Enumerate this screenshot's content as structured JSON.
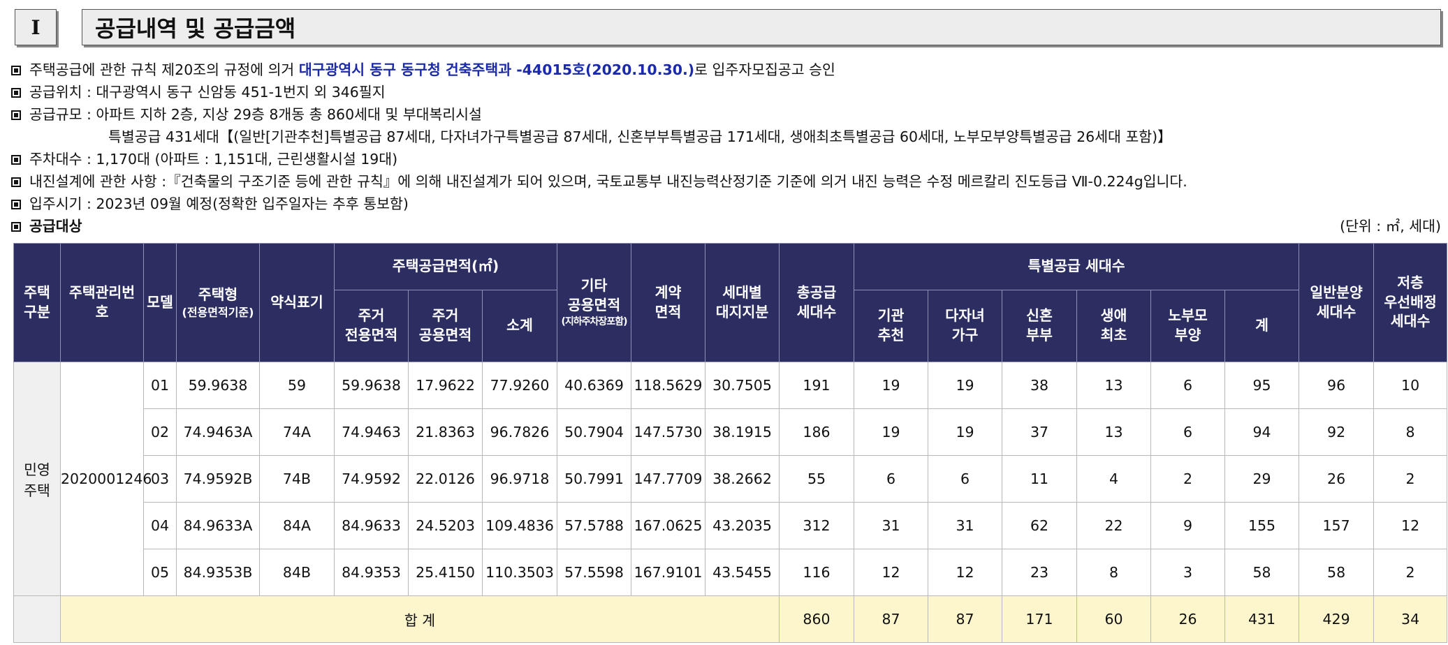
{
  "section": {
    "number": "I",
    "title": "공급내역 및 공급금액"
  },
  "notes": {
    "approval_prefix": "주택공급에 관한 규칙 제20조의 규정에 의거 ",
    "approval_highlight": "대구광역시 동구 동구청 건축주택과 -44015호(2020.10.30.)",
    "approval_suffix": "로 입주자모집공고 승인",
    "location": "공급위치 : 대구광역시 동구 신암동 451-1번지 외 346필지",
    "scale": "공급규모 : 아파트 지하 2층, 지상 29층 8개동 총 860세대 및 부대복리시설",
    "special": "특별공급 431세대【(일반[기관추천]특별공급 87세대, 다자녀가구특별공급 87세대, 신혼부부특별공급 171세대, 생애최초특별공급 60세대, 노부모부양특별공급 26세대 포함)】",
    "parking": "주차대수 : 1,170대 (아파트 : 1,151대, 근린생활시설 19대)",
    "seismic": "내진설계에 관한 사항 :『건축물의 구조기준 등에 관한 규칙』에 의해 내진설계가 되어 있으며, 국토교통부 내진능력산정기준 기준에 의거 내진 능력은 수정 메르칼리 진도등급 Ⅶ-0.224g입니다.",
    "move_in": "입주시기 : 2023년 09월 예정(정확한 입주일자는 추후 통보함)",
    "target_label": "공급대상",
    "unit_label": "(단위 : ㎡, 세대)"
  },
  "table": {
    "headers": {
      "house_type_group": "주택\n구분",
      "mgmt_no": "주택관리번\n호",
      "model": "모델",
      "house_type": "주택형",
      "house_type_sub": "(전용면적기준)",
      "short_label": "약식표기",
      "supply_area": "주택공급면적(㎡)",
      "exclusive": "주거\n전용면적",
      "common": "주거\n공용면적",
      "subtotal": "소계",
      "other_common": "기타\n공용면적",
      "other_common_sub": "(지하주차장포함)",
      "contract_area": "계약\n면적",
      "land_share": "세대별\n대지지분",
      "total_supply": "총공급\n세대수",
      "special_group": "특별공급 세대수",
      "institution": "기관\n추천",
      "multi_child": "다자녀\n가구",
      "newlywed": "신혼\n부부",
      "first_time": "생애\n최초",
      "elderly": "노부모\n부양",
      "special_total": "계",
      "general": "일반분양\n세대수",
      "low_floor": "저층\n우선배정\n세대수"
    },
    "type_group": "민영\n주택",
    "mgmt_no": "2020001246",
    "rows": [
      {
        "model": "01",
        "type": "59.9638",
        "short": "59",
        "exclusive": "59.9638",
        "common": "17.9622",
        "subtotal": "77.9260",
        "other": "40.6369",
        "contract": "118.5629",
        "land": "30.7505",
        "total": "191",
        "institution": "19",
        "multi_child": "19",
        "newlywed": "38",
        "first_time": "13",
        "elderly": "6",
        "special_total": "95",
        "general": "96",
        "low_floor": "10"
      },
      {
        "model": "02",
        "type": "74.9463A",
        "short": "74A",
        "exclusive": "74.9463",
        "common": "21.8363",
        "subtotal": "96.7826",
        "other": "50.7904",
        "contract": "147.5730",
        "land": "38.1915",
        "total": "186",
        "institution": "19",
        "multi_child": "19",
        "newlywed": "37",
        "first_time": "13",
        "elderly": "6",
        "special_total": "94",
        "general": "92",
        "low_floor": "8"
      },
      {
        "model": "03",
        "type": "74.9592B",
        "short": "74B",
        "exclusive": "74.9592",
        "common": "22.0126",
        "subtotal": "96.9718",
        "other": "50.7991",
        "contract": "147.7709",
        "land": "38.2662",
        "total": "55",
        "institution": "6",
        "multi_child": "6",
        "newlywed": "11",
        "first_time": "4",
        "elderly": "2",
        "special_total": "29",
        "general": "26",
        "low_floor": "2"
      },
      {
        "model": "04",
        "type": "84.9633A",
        "short": "84A",
        "exclusive": "84.9633",
        "common": "24.5203",
        "subtotal": "109.4836",
        "other": "57.5788",
        "contract": "167.0625",
        "land": "43.2035",
        "total": "312",
        "institution": "31",
        "multi_child": "31",
        "newlywed": "62",
        "first_time": "22",
        "elderly": "9",
        "special_total": "155",
        "general": "157",
        "low_floor": "12"
      },
      {
        "model": "05",
        "type": "84.9353B",
        "short": "84B",
        "exclusive": "84.9353",
        "common": "25.4150",
        "subtotal": "110.3503",
        "other": "57.5598",
        "contract": "167.9101",
        "land": "43.5455",
        "total": "116",
        "institution": "12",
        "multi_child": "12",
        "newlywed": "23",
        "first_time": "8",
        "elderly": "3",
        "special_total": "58",
        "general": "58",
        "low_floor": "2"
      }
    ],
    "sum": {
      "label": "합 계",
      "total": "860",
      "institution": "87",
      "multi_child": "87",
      "newlywed": "171",
      "first_time": "60",
      "elderly": "26",
      "special_total": "431",
      "general": "429",
      "low_floor": "34"
    }
  }
}
